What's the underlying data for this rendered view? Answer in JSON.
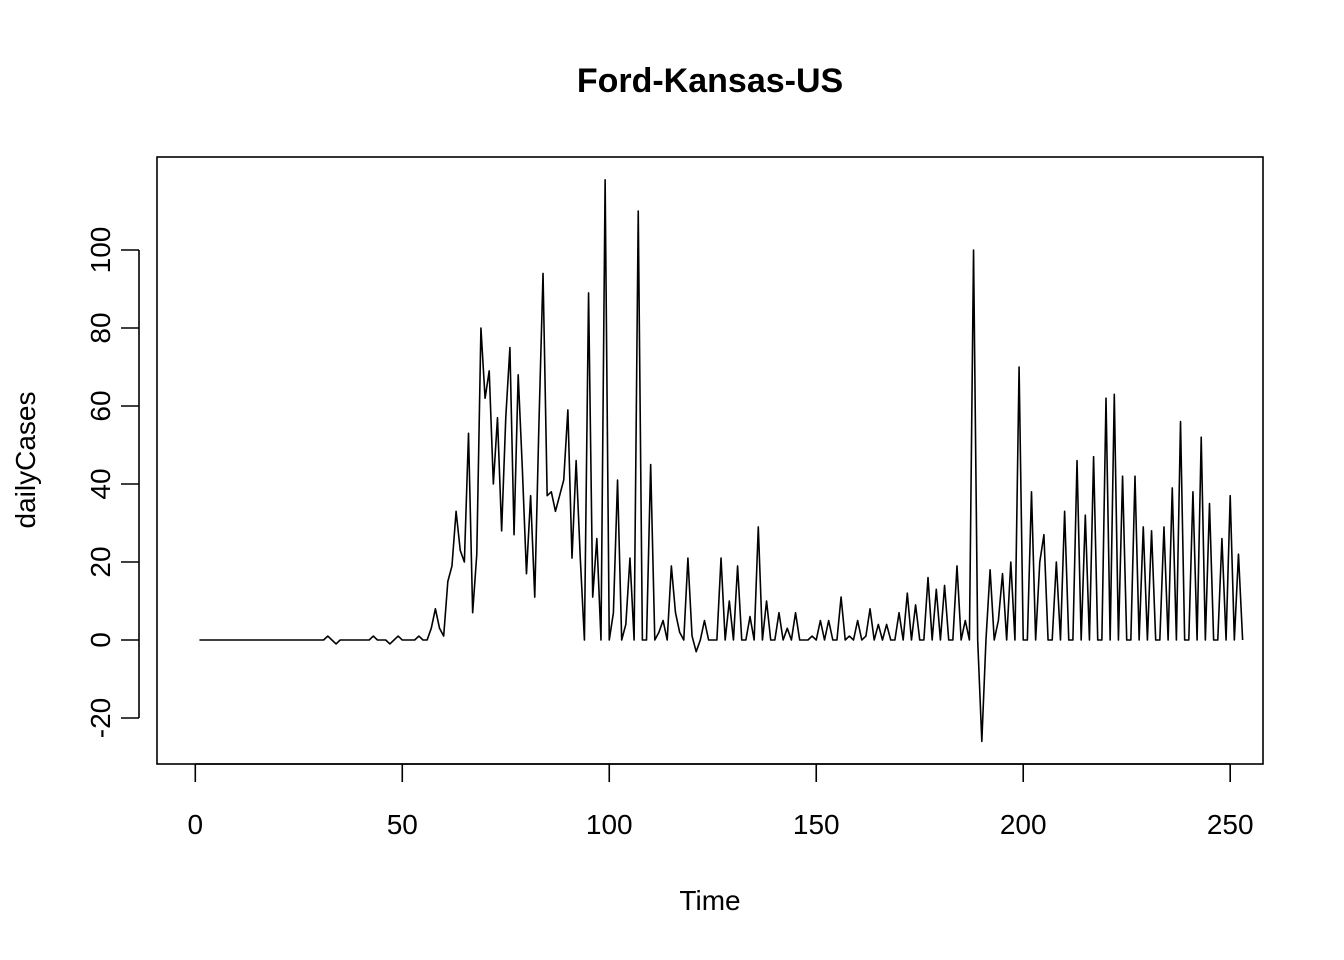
{
  "chart_data": {
    "type": "line",
    "title": "Ford-Kansas-US",
    "xlabel": "Time",
    "ylabel": "dailyCases",
    "xlim": [
      0,
      250
    ],
    "ylim": [
      -20,
      110
    ],
    "xticks": [
      "0",
      "50",
      "100",
      "150",
      "200",
      "250"
    ],
    "yticks": [
      "-20",
      "0",
      "20",
      "40",
      "60",
      "80",
      "100"
    ],
    "grid": false,
    "legend": "none",
    "line_color": "#000000",
    "series": [
      {
        "x_start": 1,
        "values": [
          0,
          0,
          0,
          0,
          0,
          0,
          0,
          0,
          0,
          0,
          0,
          0,
          0,
          0,
          0,
          0,
          0,
          0,
          0,
          0,
          0,
          0,
          0,
          0,
          0,
          0,
          0,
          0,
          0,
          0,
          0,
          1,
          0,
          -1,
          0,
          0,
          0,
          0,
          0,
          0,
          0,
          0,
          1,
          0,
          0,
          0,
          -1,
          0,
          1,
          0,
          0,
          0,
          0,
          1,
          0,
          0,
          3,
          8,
          3,
          1,
          15,
          19,
          33,
          23,
          20,
          53,
          7,
          22,
          80,
          62,
          69,
          40,
          57,
          28,
          57,
          75,
          27,
          68,
          44,
          17,
          37,
          11,
          55,
          94,
          37,
          38,
          33,
          37,
          41,
          59,
          21,
          46,
          21,
          0,
          89,
          11,
          26,
          0,
          118,
          0,
          7,
          41,
          0,
          4,
          21,
          0,
          110,
          0,
          0,
          45,
          0,
          2,
          5,
          0,
          19,
          7,
          2,
          0,
          21,
          1,
          -3,
          0,
          5,
          0,
          0,
          0,
          21,
          0,
          10,
          0,
          19,
          0,
          0,
          6,
          0,
          29,
          0,
          10,
          0,
          0,
          7,
          0,
          3,
          0,
          7,
          0,
          0,
          0,
          1,
          0,
          5,
          0,
          5,
          0,
          0,
          11,
          0,
          1,
          0,
          5,
          0,
          1,
          8,
          0,
          4,
          0,
          4,
          0,
          0,
          7,
          0,
          12,
          0,
          9,
          0,
          0,
          16,
          0,
          13,
          0,
          14,
          0,
          0,
          19,
          0,
          5,
          0,
          100,
          0,
          -26,
          0,
          18,
          0,
          5,
          17,
          0,
          20,
          0,
          70,
          0,
          0,
          38,
          0,
          20,
          27,
          0,
          0,
          20,
          0,
          33,
          0,
          0,
          46,
          0,
          32,
          0,
          47,
          0,
          0,
          62,
          0,
          63,
          0,
          42,
          0,
          0,
          42,
          0,
          29,
          0,
          28,
          0,
          0,
          29,
          0,
          39,
          0,
          56,
          0,
          0,
          38,
          0,
          52,
          0,
          35,
          0,
          0,
          26,
          0,
          37,
          0,
          22,
          0
        ]
      }
    ]
  }
}
